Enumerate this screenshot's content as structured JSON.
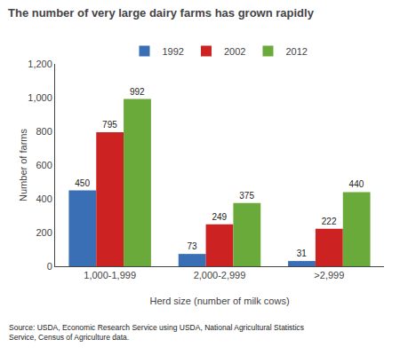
{
  "chart_data": {
    "type": "bar",
    "title": "The number of very large dairy farms has grown rapidly",
    "xlabel": "Herd size (number of milk cows)",
    "ylabel": "Number of farms",
    "annotations": [
      "Source: USDA, Economic Research Service using USDA, National Agricultural Statistics\nService, Census of Agriculture data."
    ],
    "categories": [
      "1,000-1,999",
      "2,000-2,999",
      ">2,999"
    ],
    "series": [
      {
        "name": "1992",
        "color": "#3a6eb5",
        "values": [
          450,
          73,
          31
        ]
      },
      {
        "name": "2002",
        "color": "#cc2222",
        "values": [
          795,
          249,
          222
        ]
      },
      {
        "name": "2012",
        "color": "#6aaa3a",
        "values": [
          992,
          375,
          440
        ]
      }
    ],
    "ylim": [
      0,
      1200
    ],
    "yticks": [
      0,
      200,
      400,
      600,
      800,
      {
        "value": 1000,
        "label": "1,000"
      },
      {
        "value": 1200,
        "label": "1,200"
      }
    ],
    "grid": false,
    "legend": "top",
    "data_labels": true
  }
}
